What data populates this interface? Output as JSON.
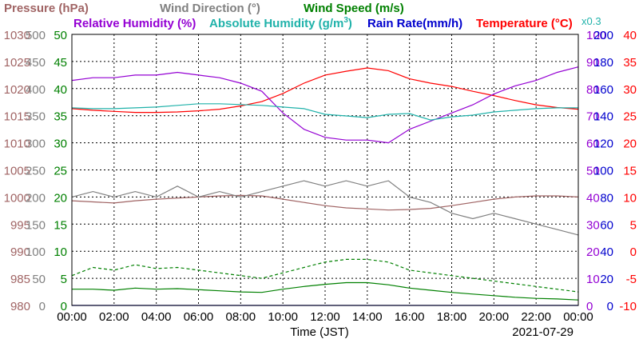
{
  "chart_data": {
    "type": "line",
    "date": "2021-07-29",
    "xlabel": "Time (JST)",
    "x_ticks": [
      "00:00",
      "02:00",
      "04:00",
      "06:00",
      "08:00",
      "10:00",
      "12:00",
      "14:00",
      "16:00",
      "18:00",
      "20:00",
      "22:00",
      "00:00"
    ],
    "xlim_hours": [
      0,
      24
    ],
    "grid": true,
    "legend": [
      {
        "text": "Pressure (hPa)",
        "color": "#a06464"
      },
      {
        "text": "Wind Direction (°)",
        "color": "#808080"
      },
      {
        "text": "Wind Speed (m/s)",
        "color": "#008000"
      },
      {
        "text": "Relative Humidity (%)",
        "color": "#9400d3"
      },
      {
        "text": "Absolute Humidity (g/m",
        "sup": "3",
        "close": ")",
        "color": "#20b2aa"
      },
      {
        "text": "Rain Rate(mm/h)",
        "color": "#0000cd"
      },
      {
        "text": "Temperature (°C)",
        "color": "#ff0000"
      }
    ],
    "axes": {
      "pressure": {
        "name": "Pressure (hPa)",
        "color": "#a06464",
        "ticks": [
          "980",
          "985",
          "990",
          "995",
          "1000",
          "1005",
          "1010",
          "1015",
          "1020",
          "1025",
          "1030"
        ]
      },
      "wind_direction": {
        "name": "Wind Direction (°)",
        "color": "#808080",
        "ticks": [
          "0",
          "50",
          "100",
          "150",
          "200",
          "250",
          "300",
          "350",
          "400",
          "450",
          "500"
        ]
      },
      "wind_speed": {
        "name": "Wind Speed (m/s)",
        "color": "#008000",
        "ticks": [
          "0",
          "5",
          "10",
          "15",
          "20",
          "25",
          "30",
          "35",
          "40",
          "45",
          "50"
        ]
      },
      "relative_humidity": {
        "name": "Relative Humidity (%)",
        "color": "#9400d3",
        "ticks": [
          "0",
          "10",
          "20",
          "30",
          "40",
          "50",
          "60",
          "70",
          "80",
          "90",
          "100"
        ]
      },
      "rain_rate": {
        "name": "Rain Rate(mm/h)",
        "color": "#0000cd",
        "ticks": [
          "0",
          "20",
          "40",
          "60",
          "80",
          "100",
          "120",
          "140",
          "160",
          "180",
          "200"
        ]
      },
      "temperature": {
        "name": "Temperature (°C)",
        "color": "#ff0000",
        "ticks": [
          "-10",
          "-5",
          "0",
          "5",
          "10",
          "15",
          "20",
          "25",
          "30",
          "35",
          "40"
        ]
      }
    },
    "abs_humidity_scale_note": "x0.3",
    "series": [
      {
        "name": "Temperature (°C)",
        "color": "#ff0000",
        "x": [
          0,
          1,
          2,
          3,
          4,
          5,
          6,
          7,
          8,
          9,
          10,
          11,
          12,
          13,
          14,
          15,
          16,
          17,
          18,
          19,
          20,
          21,
          22,
          23,
          24
        ],
        "values": [
          26.3,
          26.0,
          25.8,
          25.6,
          25.6,
          25.7,
          25.9,
          26.2,
          26.8,
          27.6,
          29.1,
          31.0,
          32.5,
          33.2,
          33.8,
          33.3,
          31.8,
          31.0,
          30.4,
          29.5,
          28.7,
          27.8,
          27.0,
          26.5,
          26.2
        ]
      },
      {
        "name": "Relative Humidity (%)",
        "color": "#9400d3",
        "x": [
          0,
          1,
          2,
          3,
          4,
          5,
          6,
          7,
          8,
          9,
          10,
          11,
          12,
          13,
          14,
          15,
          16,
          17,
          18,
          19,
          20,
          21,
          22,
          23,
          24
        ],
        "values": [
          83,
          84,
          84,
          85,
          85,
          86,
          85,
          84,
          82,
          79,
          71,
          65,
          62,
          61,
          61,
          60,
          65,
          68,
          71,
          74,
          78,
          81,
          83,
          86,
          88
        ]
      },
      {
        "name": "Absolute Humidity (g/m3)",
        "color": "#20b2aa",
        "x": [
          0,
          1,
          2,
          3,
          4,
          5,
          6,
          7,
          8,
          9,
          10,
          11,
          12,
          13,
          14,
          15,
          16,
          17,
          18,
          19,
          20,
          21,
          22,
          23,
          24
        ],
        "values": [
          24.3,
          24.2,
          24.2,
          24.3,
          24.4,
          24.6,
          24.8,
          24.8,
          24.7,
          24.6,
          24.4,
          24.2,
          23.5,
          23.3,
          23.1,
          23.5,
          23.6,
          22.8,
          23.2,
          23.4,
          23.8,
          24.0,
          24.2,
          24.3,
          24.3
        ]
      },
      {
        "name": "Pressure (hPa)",
        "color": "#a06464",
        "x": [
          0,
          1,
          2,
          3,
          4,
          5,
          6,
          7,
          8,
          9,
          10,
          11,
          12,
          13,
          14,
          15,
          16,
          17,
          18,
          19,
          20,
          21,
          22,
          23,
          24
        ],
        "values": [
          999.3,
          999.1,
          998.9,
          999.3,
          999.6,
          999.8,
          1000.0,
          1000.2,
          1000.3,
          1000.2,
          999.6,
          999.0,
          998.4,
          998.0,
          997.8,
          997.6,
          997.7,
          997.9,
          998.4,
          999.0,
          999.6,
          1000.0,
          1000.2,
          1000.2,
          1000.0
        ]
      },
      {
        "name": "Wind Direction (°)",
        "color": "#808080",
        "x": [
          0,
          1,
          2,
          3,
          4,
          5,
          6,
          7,
          8,
          9,
          10,
          11,
          12,
          13,
          14,
          15,
          16,
          17,
          18,
          19,
          20,
          21,
          22,
          23,
          24
        ],
        "values": [
          200,
          210,
          200,
          210,
          200,
          220,
          200,
          210,
          200,
          210,
          220,
          230,
          220,
          230,
          220,
          230,
          200,
          190,
          170,
          160,
          170,
          160,
          150,
          140,
          130
        ]
      },
      {
        "name": "Wind Speed (m/s) max",
        "color": "#008000",
        "style": "dashed",
        "x": [
          0,
          1,
          2,
          3,
          4,
          5,
          6,
          7,
          8,
          9,
          10,
          11,
          12,
          13,
          14,
          15,
          16,
          17,
          18,
          19,
          20,
          21,
          22,
          23,
          24
        ],
        "values": [
          5.5,
          7.0,
          6.5,
          7.5,
          6.8,
          7.0,
          6.5,
          6.0,
          5.5,
          5.0,
          6.0,
          7.0,
          8.0,
          8.5,
          8.5,
          8.0,
          6.5,
          6.0,
          5.5,
          5.0,
          4.5,
          4.0,
          3.5,
          3.0,
          2.5
        ]
      },
      {
        "name": "Wind Speed (m/s) mean",
        "color": "#008000",
        "style": "solid",
        "x": [
          0,
          1,
          2,
          3,
          4,
          5,
          6,
          7,
          8,
          9,
          10,
          11,
          12,
          13,
          14,
          15,
          16,
          17,
          18,
          19,
          20,
          21,
          22,
          23,
          24
        ],
        "values": [
          3.0,
          3.0,
          2.8,
          3.2,
          3.0,
          3.1,
          2.9,
          2.7,
          2.5,
          2.4,
          3.0,
          3.5,
          3.9,
          4.2,
          4.2,
          3.8,
          3.2,
          2.8,
          2.4,
          2.1,
          1.8,
          1.5,
          1.3,
          1.2,
          1.0
        ]
      },
      {
        "name": "Rain Rate(mm/h)",
        "color": "#0000cd",
        "x": [
          0,
          24
        ],
        "values": [
          0,
          0
        ]
      }
    ]
  }
}
